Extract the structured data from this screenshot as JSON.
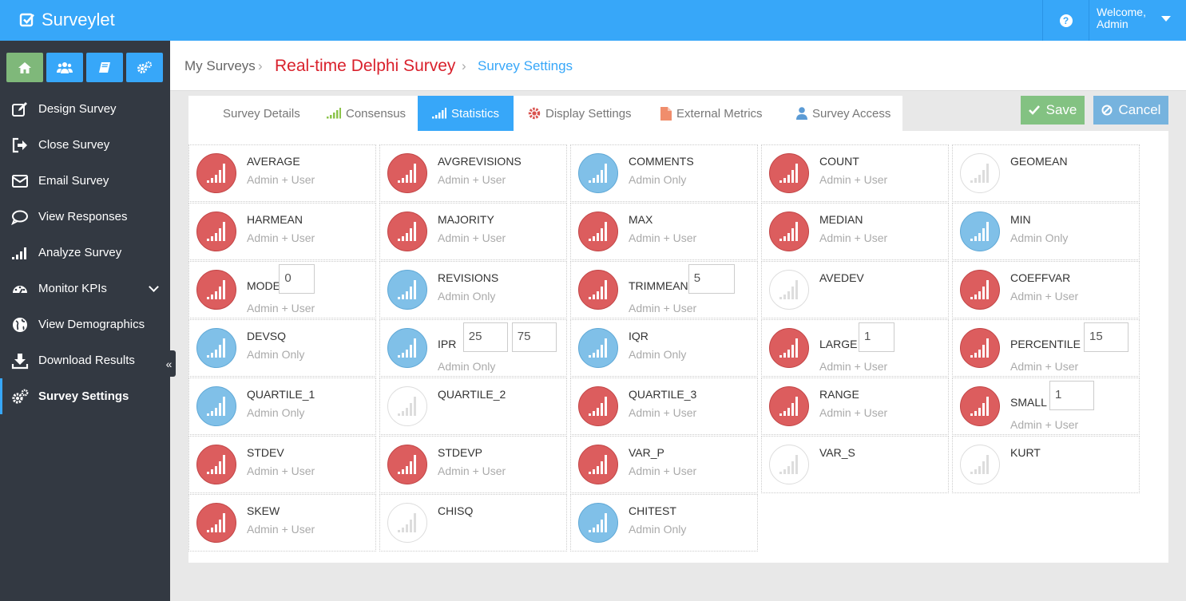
{
  "app": {
    "title": "Surveylet"
  },
  "topbar": {
    "help_icon": "question-circle-icon",
    "welcome": "Welcome,",
    "user": "Admin"
  },
  "quick_buttons": [
    {
      "name": "home-icon",
      "color": "#7fb87a"
    },
    {
      "name": "users-icon",
      "color": "#37a7f9"
    },
    {
      "name": "book-icon",
      "color": "#37a7f9"
    },
    {
      "name": "cogs-icon",
      "color": "#37a7f9"
    }
  ],
  "sidebar": {
    "items": [
      {
        "label": "Design Survey",
        "icon": "edit-icon"
      },
      {
        "label": "Close Survey",
        "icon": "sign-out-icon"
      },
      {
        "label": "Email Survey",
        "icon": "envelope-icon"
      },
      {
        "label": "View Responses",
        "icon": "comment-icon"
      },
      {
        "label": "Analyze Survey",
        "icon": "signal-icon"
      },
      {
        "label": "Monitor KPIs",
        "icon": "dashboard-icon"
      },
      {
        "label": "View Demographics",
        "icon": "globe-icon"
      },
      {
        "label": "Download Results",
        "icon": "download-icon"
      },
      {
        "label": "Survey Settings",
        "icon": "cogs-icon"
      }
    ]
  },
  "breadcrumb": {
    "root": "My Surveys",
    "survey": "Real-time Delphi Survey",
    "current": "Survey Settings",
    "sep": "›"
  },
  "tabs": [
    {
      "label": "Survey Details",
      "icon": ""
    },
    {
      "label": "Consensus",
      "icon": "signal-icon"
    },
    {
      "label": "Statistics",
      "icon": "signal-icon"
    },
    {
      "label": "Display Settings",
      "icon": "gear-icon"
    },
    {
      "label": "External Metrics",
      "icon": "file-icon"
    },
    {
      "label": "Survey Access",
      "icon": "user-icon"
    }
  ],
  "actions": {
    "save": "Save",
    "cancel": "Cancel"
  },
  "colors": {
    "accent": "#37a7f9",
    "red": "#dc5d5e",
    "blue": "#80c0e8",
    "save": "#83c282",
    "cancel": "#76b3de",
    "crumb_red": "#d9212c"
  },
  "statistics": [
    {
      "name": "AVERAGE",
      "access": "Admin + User",
      "color": "red",
      "inputs": []
    },
    {
      "name": "AVGREVISIONS",
      "access": "Admin + User",
      "color": "red",
      "inputs": []
    },
    {
      "name": "COMMENTS",
      "access": "Admin Only",
      "color": "blue",
      "inputs": []
    },
    {
      "name": "COUNT",
      "access": "Admin + User",
      "color": "red",
      "inputs": []
    },
    {
      "name": "GEOMEAN",
      "access": "",
      "color": "white",
      "inputs": []
    },
    {
      "name": "HARMEAN",
      "access": "Admin + User",
      "color": "red",
      "inputs": []
    },
    {
      "name": "MAJORITY",
      "access": "Admin + User",
      "color": "red",
      "inputs": []
    },
    {
      "name": "MAX",
      "access": "Admin + User",
      "color": "red",
      "inputs": []
    },
    {
      "name": "MEDIAN",
      "access": "Admin + User",
      "color": "red",
      "inputs": []
    },
    {
      "name": "MIN",
      "access": "Admin Only",
      "color": "blue",
      "inputs": []
    },
    {
      "name": "MODE",
      "access": "Admin + User",
      "color": "red",
      "inputs": [
        "0"
      ]
    },
    {
      "name": "REVISIONS",
      "access": "Admin Only",
      "color": "blue",
      "inputs": []
    },
    {
      "name": "TRIMMEAN",
      "access": "Admin + User",
      "color": "red",
      "inputs": [
        "5"
      ]
    },
    {
      "name": "AVEDEV",
      "access": "",
      "color": "white",
      "inputs": []
    },
    {
      "name": "COEFFVAR",
      "access": "Admin + User",
      "color": "red",
      "inputs": []
    },
    {
      "name": "DEVSQ",
      "access": "Admin Only",
      "color": "blue",
      "inputs": []
    },
    {
      "name": "IPR",
      "access": "Admin Only",
      "color": "blue",
      "inputs": [
        "25",
        "75"
      ]
    },
    {
      "name": "IQR",
      "access": "Admin Only",
      "color": "blue",
      "inputs": []
    },
    {
      "name": "LARGE",
      "access": "Admin + User",
      "color": "red",
      "inputs": [
        "1"
      ]
    },
    {
      "name": "PERCENTILE",
      "access": "Admin + User",
      "color": "red",
      "inputs": [
        "15"
      ]
    },
    {
      "name": "QUARTILE_1",
      "access": "Admin Only",
      "color": "blue",
      "inputs": []
    },
    {
      "name": "QUARTILE_2",
      "access": "",
      "color": "white",
      "inputs": []
    },
    {
      "name": "QUARTILE_3",
      "access": "Admin + User",
      "color": "red",
      "inputs": []
    },
    {
      "name": "RANGE",
      "access": "Admin + User",
      "color": "red",
      "inputs": []
    },
    {
      "name": "SMALL",
      "access": "Admin + User",
      "color": "red",
      "inputs": [
        "1"
      ]
    },
    {
      "name": "STDEV",
      "access": "Admin + User",
      "color": "red",
      "inputs": []
    },
    {
      "name": "STDEVP",
      "access": "Admin + User",
      "color": "red",
      "inputs": []
    },
    {
      "name": "VAR_P",
      "access": "Admin + User",
      "color": "red",
      "inputs": []
    },
    {
      "name": "VAR_S",
      "access": "",
      "color": "white",
      "inputs": []
    },
    {
      "name": "KURT",
      "access": "",
      "color": "white",
      "inputs": []
    },
    {
      "name": "SKEW",
      "access": "Admin + User",
      "color": "red",
      "inputs": []
    },
    {
      "name": "CHISQ",
      "access": "",
      "color": "white",
      "inputs": []
    },
    {
      "name": "CHITEST",
      "access": "Admin Only",
      "color": "blue",
      "inputs": []
    }
  ]
}
